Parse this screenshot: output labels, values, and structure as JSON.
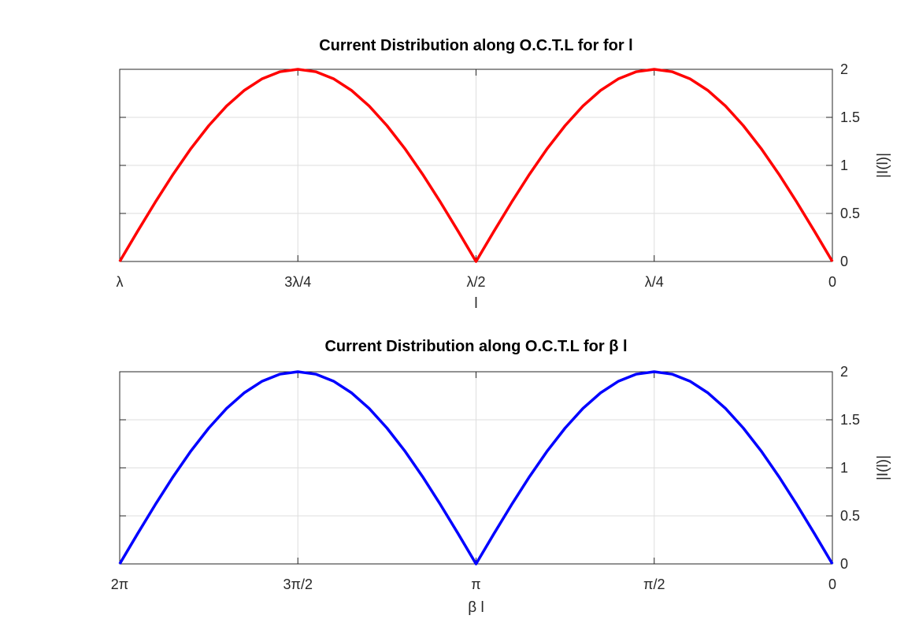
{
  "chart_data": [
    {
      "type": "line",
      "title": "Current Distribution along O.C.T.L for for l",
      "xlabel": "l",
      "ylabel": "|I(l)|",
      "xlim": [
        0,
        1
      ],
      "x_unit": "wavelengths (λ)",
      "x_reversed": true,
      "ylim": [
        0,
        2
      ],
      "x_ticks": [
        1,
        0.75,
        0.5,
        0.25,
        0
      ],
      "x_tick_labels": [
        "λ",
        "3λ/4",
        "λ/2",
        "λ/4",
        "0"
      ],
      "y_ticks": [
        0,
        0.5,
        1,
        1.5,
        2
      ],
      "y_tick_labels": [
        "0",
        "0.5",
        "1",
        "1.5",
        "2"
      ],
      "y_axis_side": "right",
      "grid": true,
      "series": [
        {
          "color": "#ff0000",
          "x": [
            0,
            0.025,
            0.05,
            0.075,
            0.1,
            0.125,
            0.15,
            0.175,
            0.2,
            0.225,
            0.25,
            0.275,
            0.3,
            0.325,
            0.35,
            0.375,
            0.4,
            0.425,
            0.45,
            0.475,
            0.5,
            0.525,
            0.55,
            0.575,
            0.6,
            0.625,
            0.65,
            0.675,
            0.7,
            0.725,
            0.75,
            0.775,
            0.8,
            0.825,
            0.85,
            0.875,
            0.9,
            0.925,
            0.95,
            0.975,
            1
          ],
          "values": [
            0,
            0.313,
            0.618,
            0.908,
            1.176,
            1.414,
            1.618,
            1.782,
            1.902,
            1.975,
            2,
            1.975,
            1.902,
            1.782,
            1.618,
            1.414,
            1.176,
            0.908,
            0.618,
            0.313,
            0,
            0.313,
            0.618,
            0.908,
            1.176,
            1.414,
            1.618,
            1.782,
            1.902,
            1.975,
            2,
            1.975,
            1.902,
            1.782,
            1.618,
            1.414,
            1.176,
            0.908,
            0.618,
            0.313,
            0
          ]
        }
      ]
    },
    {
      "type": "line",
      "title": "Current Distribution along O.C.T.L for β l",
      "xlabel": "β l",
      "ylabel": "|I(l)|",
      "xlim": [
        0,
        6.2832
      ],
      "x_reversed": true,
      "ylim": [
        0,
        2
      ],
      "x_ticks": [
        6.2832,
        4.7124,
        3.1416,
        1.5708,
        0
      ],
      "x_tick_labels": [
        "2π",
        "3π/2",
        "π",
        "π/2",
        "0"
      ],
      "y_ticks": [
        0,
        0.5,
        1,
        1.5,
        2
      ],
      "y_tick_labels": [
        "0",
        "0.5",
        "1",
        "1.5",
        "2"
      ],
      "y_axis_side": "right",
      "grid": true,
      "series": [
        {
          "color": "#0000ff",
          "x": [
            0,
            0.1571,
            0.3142,
            0.4712,
            0.6283,
            0.7854,
            0.9425,
            1.0996,
            1.2566,
            1.4137,
            1.5708,
            1.7279,
            1.885,
            2.042,
            2.1991,
            2.3562,
            2.5133,
            2.6704,
            2.8274,
            2.9845,
            3.1416,
            3.2987,
            3.4558,
            3.6128,
            3.7699,
            3.927,
            4.0841,
            4.2412,
            4.3982,
            4.5553,
            4.7124,
            4.8695,
            5.0265,
            5.1836,
            5.3407,
            5.4978,
            5.6549,
            5.8119,
            5.969,
            6.1261,
            6.2832
          ],
          "values": [
            0,
            0.313,
            0.618,
            0.908,
            1.176,
            1.414,
            1.618,
            1.782,
            1.902,
            1.975,
            2,
            1.975,
            1.902,
            1.782,
            1.618,
            1.414,
            1.176,
            0.908,
            0.618,
            0.313,
            0,
            0.313,
            0.618,
            0.908,
            1.176,
            1.414,
            1.618,
            1.782,
            1.902,
            1.975,
            2,
            1.975,
            1.902,
            1.782,
            1.618,
            1.414,
            1.176,
            0.908,
            0.618,
            0.313,
            0
          ]
        }
      ]
    }
  ]
}
